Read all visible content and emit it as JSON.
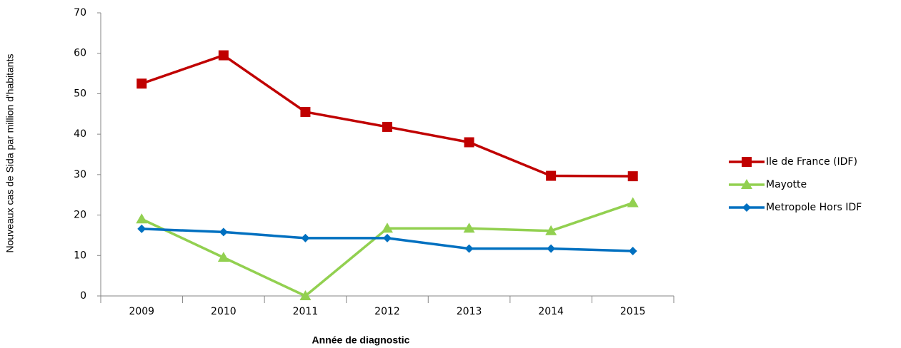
{
  "chart_data": {
    "type": "line",
    "y_label": "Nouveaux cas de Sida par million d'habitants",
    "x_label": "Année de diagnostic",
    "categories": [
      "2009",
      "2010",
      "2011",
      "2012",
      "2013",
      "2014",
      "2015"
    ],
    "series": [
      {
        "name": "Ile de France (IDF)",
        "color": "#c00000",
        "marker": "square",
        "values": [
          52.5,
          59.5,
          45.5,
          41.8,
          38,
          29.7,
          29.6
        ]
      },
      {
        "name": "Mayotte",
        "color": "#92d050",
        "marker": "triangle",
        "values": [
          19,
          9.5,
          0,
          16.7,
          16.7,
          16.1,
          23
        ]
      },
      {
        "name": "Metropole Hors IDF",
        "color": "#0070c0",
        "marker": "diamond",
        "values": [
          16.6,
          15.8,
          14.3,
          14.3,
          11.7,
          11.7,
          11.1
        ]
      }
    ],
    "ylim": [
      0,
      70
    ],
    "yticks": [
      0,
      10,
      20,
      30,
      40,
      50,
      60,
      70
    ],
    "grid": false,
    "legend": "right"
  }
}
